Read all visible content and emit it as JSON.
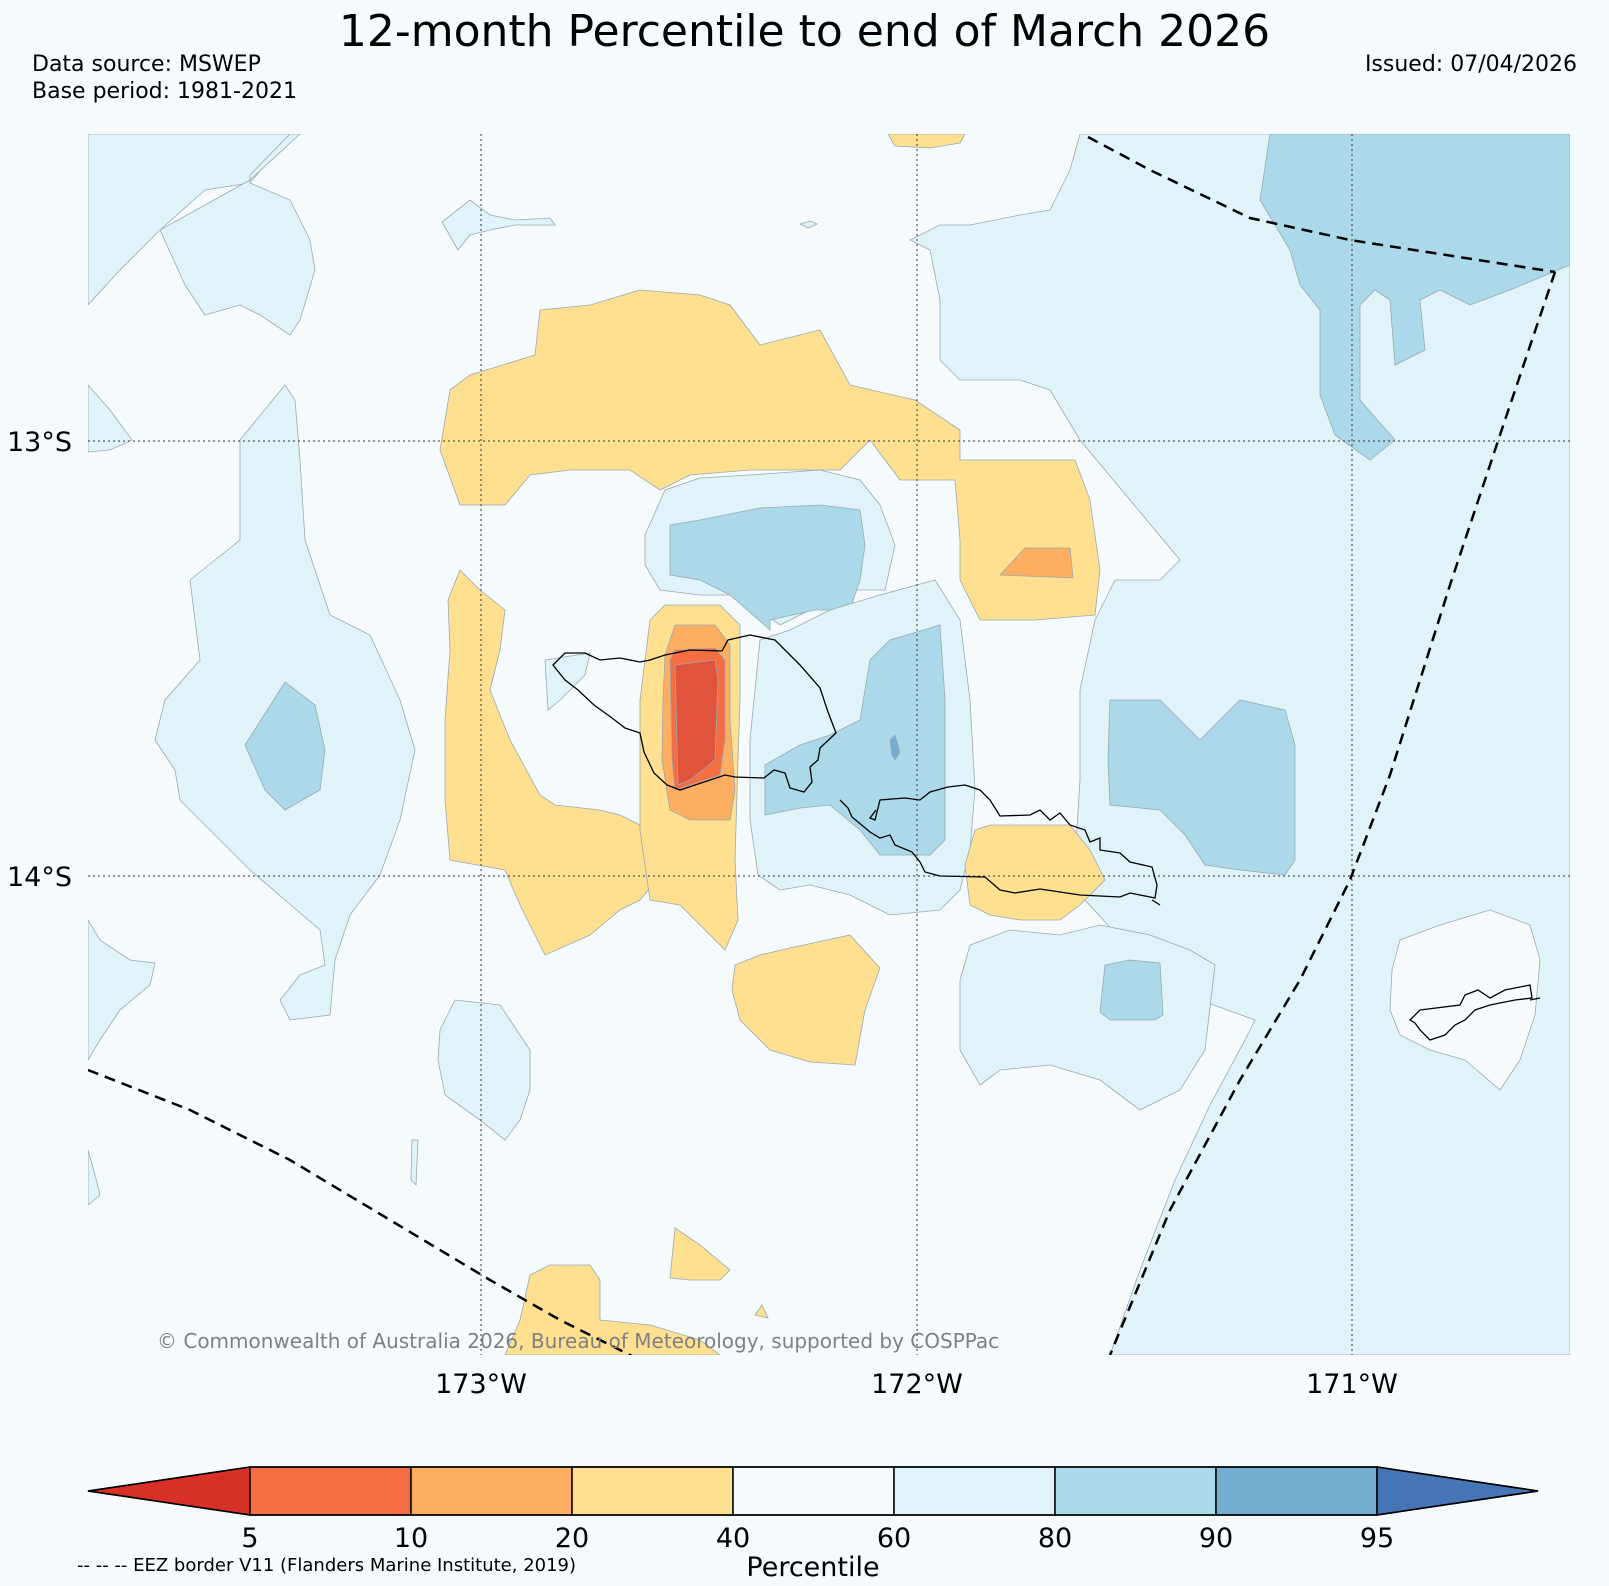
{
  "header": {
    "title": "12-month Percentile to end of March 2026",
    "data_source": "Data source: MSWEP",
    "base_period": "Base period: 1981-2021",
    "issued": "Issued: 07/04/2026"
  },
  "map": {
    "lat_labels": [
      "13°S",
      "14°S"
    ],
    "lon_labels": [
      "173°W",
      "172°W",
      "171°W"
    ],
    "copyright": "© Commonwealth of Australia 2026, Bureau of Meteorology, supported by COSPPac"
  },
  "legend": {
    "title": "Percentile",
    "ticks": [
      "5",
      "10",
      "20",
      "40",
      "60",
      "80",
      "90",
      "95"
    ],
    "colors": {
      "below_5": "#d73027",
      "p5_10": "#f46d43",
      "p10_20": "#fdae61",
      "p20_40": "#fee090",
      "p40_60": "#f6fafc",
      "p60_80": "#e0f3f8",
      "p80_90": "#abd9e9",
      "p90_95": "#74add1",
      "above_95": "#4575b4"
    },
    "eez_note": "-- -- -- EEZ border V11 (Flanders Marine Institute, 2019)"
  }
}
